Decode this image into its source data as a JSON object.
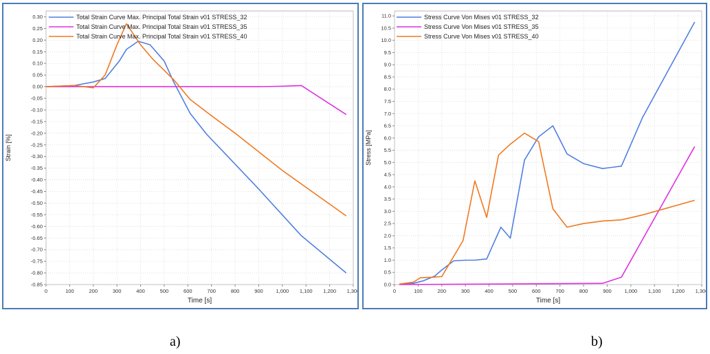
{
  "chart_data": [
    {
      "type": "line",
      "panel_label": "a)",
      "xlabel": "Time [s]",
      "ylabel": "Strain [%]",
      "xlim": [
        0,
        1300
      ],
      "ylim": [
        -0.85,
        0.325
      ],
      "xticks": [
        0,
        100,
        200,
        300,
        400,
        500,
        600,
        700,
        800,
        900,
        1000,
        1100,
        1200,
        1300
      ],
      "xtick_labels": [
        "0",
        "100",
        "200",
        "300",
        "400",
        "500",
        "600",
        "700",
        "800",
        "900",
        "1,000",
        "1,100",
        "1,200",
        "1,300"
      ],
      "yticks": [
        0.3,
        0.25,
        0.2,
        0.15,
        0.1,
        0.05,
        0.0,
        -0.05,
        -0.1,
        -0.15,
        -0.2,
        -0.25,
        -0.3,
        -0.35,
        -0.4,
        -0.45,
        -0.5,
        -0.55,
        -0.6,
        -0.65,
        -0.7,
        -0.75,
        -0.8,
        -0.85
      ],
      "ytick_labels": [
        "0.30",
        "0.25",
        "0.20",
        "0.15",
        "0.10",
        "0.05",
        "0.00",
        "-0.05",
        "-0.10",
        "-0.15",
        "-0.20",
        "-0.25",
        "-0.30",
        "-0.35",
        "-0.40",
        "-0.45",
        "-0.50",
        "-0.55",
        "-0.60",
        "-0.65",
        "-0.70",
        "-0.75",
        "-0.80",
        "-0.85"
      ],
      "grid": true,
      "legend_position": "top-center",
      "series": [
        {
          "name": "Total Strain Curve Max. Principal Total Strain  v01 STRESS_32",
          "color": "#4f7fe0",
          "points": [
            [
              0,
              0.0
            ],
            [
              120,
              0.005
            ],
            [
              200,
              0.02
            ],
            [
              250,
              0.035
            ],
            [
              310,
              0.11
            ],
            [
              340,
              0.16
            ],
            [
              390,
              0.195
            ],
            [
              440,
              0.18
            ],
            [
              500,
              0.11
            ],
            [
              540,
              0.02
            ],
            [
              610,
              -0.115
            ],
            [
              680,
              -0.205
            ],
            [
              760,
              -0.29
            ],
            [
              900,
              -0.44
            ],
            [
              1080,
              -0.64
            ],
            [
              1270,
              -0.8
            ]
          ]
        },
        {
          "name": "Total Strain Curve Max. Principal Total Strain  v01 STRESS_35",
          "color": "#e030e0",
          "points": [
            [
              0,
              0.0
            ],
            [
              900,
              0.0
            ],
            [
              1000,
              0.002
            ],
            [
              1080,
              0.005
            ],
            [
              1270,
              -0.12
            ]
          ]
        },
        {
          "name": "Total Strain Curve Max. Principal Total Strain  v01 STRESS_40",
          "color": "#f07820",
          "points": [
            [
              0,
              0.0
            ],
            [
              120,
              0.005
            ],
            [
              200,
              -0.005
            ],
            [
              250,
              0.05
            ],
            [
              300,
              0.18
            ],
            [
              340,
              0.27
            ],
            [
              400,
              0.18
            ],
            [
              450,
              0.12
            ],
            [
              540,
              0.03
            ],
            [
              610,
              -0.055
            ],
            [
              700,
              -0.125
            ],
            [
              800,
              -0.2
            ],
            [
              1000,
              -0.36
            ],
            [
              1270,
              -0.555
            ]
          ]
        }
      ]
    },
    {
      "type": "line",
      "panel_label": "b)",
      "xlabel": "Time [s]",
      "ylabel": "Stress [MPa]",
      "xlim": [
        0,
        1300
      ],
      "ylim": [
        0,
        11.2
      ],
      "xticks": [
        0,
        100,
        200,
        300,
        400,
        500,
        600,
        700,
        800,
        900,
        1000,
        1100,
        1200,
        1300
      ],
      "xtick_labels": [
        "0",
        "100",
        "200",
        "300",
        "400",
        "500",
        "600",
        "700",
        "800",
        "900",
        "1,000",
        "1,100",
        "1,200",
        "1,300"
      ],
      "yticks": [
        0.0,
        0.5,
        1.0,
        1.5,
        2.0,
        2.5,
        3.0,
        3.5,
        4.0,
        4.5,
        5.0,
        5.5,
        6.0,
        6.5,
        7.0,
        7.5,
        8.0,
        8.5,
        9.0,
        9.5,
        10.0,
        10.5,
        11.0
      ],
      "ytick_labels": [
        "0.0",
        "0.5",
        "1.0",
        "1.5",
        "2.0",
        "2.5",
        "3.0",
        "3.5",
        "4.0",
        "4.5",
        "5.0",
        "5.5",
        "6.0",
        "6.5",
        "7.0",
        "7.5",
        "8.0",
        "8.5",
        "9.0",
        "9.5",
        "10.0",
        "10.5",
        "11.0"
      ],
      "grid": true,
      "legend_position": "top-center",
      "series": [
        {
          "name": "Stress Curve Von Mises  v01 STRESS_32",
          "color": "#4f7fe0",
          "points": [
            [
              20,
              0.02
            ],
            [
              80,
              0.05
            ],
            [
              120,
              0.15
            ],
            [
              170,
              0.35
            ],
            [
              200,
              0.6
            ],
            [
              250,
              0.97
            ],
            [
              300,
              1.0
            ],
            [
              340,
              1.0
            ],
            [
              390,
              1.05
            ],
            [
              450,
              2.35
            ],
            [
              490,
              1.9
            ],
            [
              550,
              5.1
            ],
            [
              610,
              6.05
            ],
            [
              670,
              6.5
            ],
            [
              730,
              5.35
            ],
            [
              800,
              4.95
            ],
            [
              880,
              4.75
            ],
            [
              960,
              4.85
            ],
            [
              1050,
              6.85
            ],
            [
              1270,
              10.75
            ]
          ]
        },
        {
          "name": "Stress Curve Von Mises  v01 STRESS_35",
          "color": "#e030e0",
          "points": [
            [
              20,
              0.0
            ],
            [
              880,
              0.05
            ],
            [
              960,
              0.3
            ],
            [
              1270,
              5.65
            ]
          ]
        },
        {
          "name": "Stress Curve Von Mises  v01 STRESS_40",
          "color": "#f07820",
          "points": [
            [
              20,
              0.02
            ],
            [
              80,
              0.1
            ],
            [
              110,
              0.28
            ],
            [
              160,
              0.3
            ],
            [
              200,
              0.33
            ],
            [
              290,
              1.8
            ],
            [
              340,
              4.25
            ],
            [
              390,
              2.75
            ],
            [
              440,
              5.3
            ],
            [
              490,
              5.75
            ],
            [
              550,
              6.2
            ],
            [
              610,
              5.85
            ],
            [
              670,
              3.1
            ],
            [
              730,
              2.35
            ],
            [
              800,
              2.5
            ],
            [
              880,
              2.6
            ],
            [
              960,
              2.65
            ],
            [
              1050,
              2.85
            ],
            [
              1270,
              3.45
            ]
          ]
        }
      ]
    }
  ]
}
